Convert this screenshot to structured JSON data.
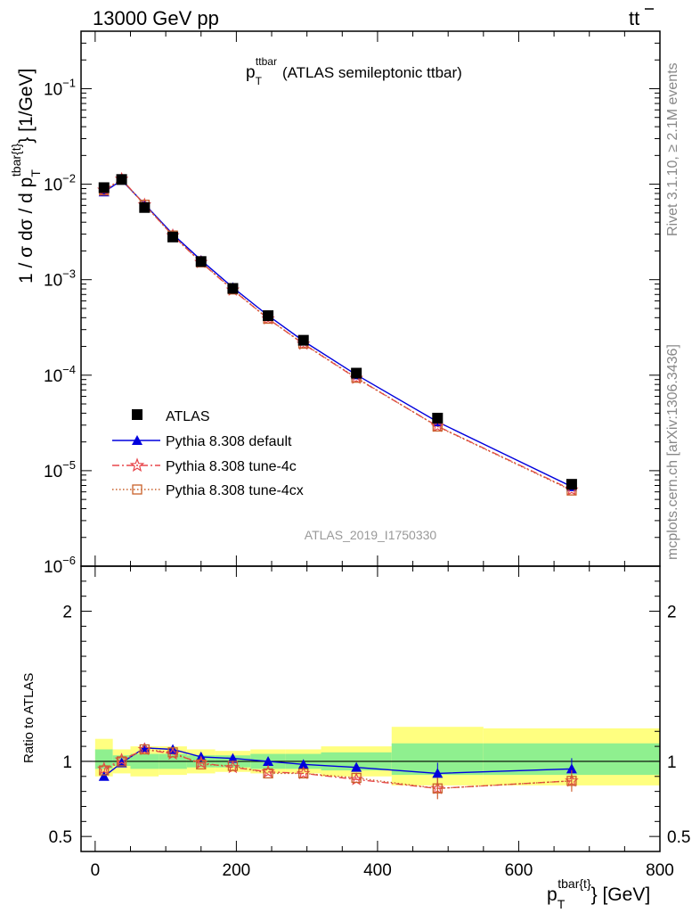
{
  "header": {
    "left": "13000 GeV pp",
    "right_base": "t",
    "right_bar": "t"
  },
  "side": {
    "rivet": "Rivet 3.1.10, ≥ 2.1M events",
    "mcplots": "mcplots.cern.ch [arXiv:1306.3436]"
  },
  "chart_data": [
    {
      "type": "line",
      "title_main": "p",
      "title_sub": "T",
      "title_sup": "ttbar",
      "title_rest": "(ATLAS semileptonic ttbar)",
      "ylabel_prefix": "1 / σ dσ / d p",
      "ylabel_sub": "T",
      "ylabel_sup": "tbar{t}",
      "ylabel_suffix": "} [1/GeV]",
      "watermark": "ATLAS_2019_I1750330",
      "yscale": "log",
      "xlim": [
        -20,
        800
      ],
      "ylim": [
        1e-06,
        0.4
      ],
      "ytick_labels": [
        {
          "base": "10",
          "exp": "−1",
          "value": 0.1
        },
        {
          "base": "10",
          "exp": "−2",
          "value": 0.01
        },
        {
          "base": "10",
          "exp": "−3",
          "value": 0.001
        },
        {
          "base": "10",
          "exp": "−4",
          "value": 0.0001
        },
        {
          "base": "10",
          "exp": "−5",
          "value": 1e-05
        },
        {
          "base": "10",
          "exp": "−6",
          "value": 1e-06
        }
      ],
      "legend_position": "lower-left",
      "x": [
        12.5,
        37.5,
        70,
        110,
        150,
        195,
        245,
        295,
        370,
        485,
        675
      ],
      "series": [
        {
          "name": "ATLAS",
          "color": "#000000",
          "marker": "square",
          "values": [
            0.0092,
            0.0112,
            0.0057,
            0.0028,
            0.00155,
            0.00081,
            0.00042,
            0.000232,
            0.000105,
            3.55e-05,
            7.2e-06
          ]
        },
        {
          "name": "Pythia 8.308 default",
          "color": "#0000dd",
          "marker": "triangle",
          "values": [
            0.0083,
            0.011,
            0.0062,
            0.003,
            0.0016,
            0.00083,
            0.00042,
            0.000228,
            0.000101,
            3.25e-05,
            6.8e-06
          ]
        },
        {
          "name": "Pythia 8.308 tune-4c",
          "color": "#e8474c",
          "marker": "star",
          "values": [
            0.0087,
            0.0113,
            0.0061,
            0.0029,
            0.00152,
            0.00078,
            0.00039,
            0.000212,
            9.3e-05,
            2.92e-05,
            6.3e-06
          ]
        },
        {
          "name": "Pythia 8.308 tune-4cx",
          "color": "#c8602a",
          "marker": "open-square",
          "values": [
            0.0086,
            0.0112,
            0.0061,
            0.0029,
            0.00152,
            0.00079,
            0.00039,
            0.000214,
            9.4e-05,
            2.9e-05,
            6.2e-06
          ]
        }
      ]
    },
    {
      "type": "line",
      "ylabel": "Ratio to ATLAS",
      "xlabel_main": "p",
      "xlabel_sub": "T",
      "xlabel_sup": "tbar{t}",
      "xlabel_suffix": "} [GeV]",
      "xlim": [
        -20,
        800
      ],
      "ylim": [
        0.4,
        2.3
      ],
      "xticks": [
        0,
        200,
        400,
        600,
        800
      ],
      "xtick_labels": [
        "0",
        "200",
        "400",
        "600",
        "800"
      ],
      "yticks": [
        0.5,
        1,
        2
      ],
      "ytick_labels": [
        "0.5",
        "1",
        "2"
      ],
      "bins": [
        [
          0,
          25
        ],
        [
          25,
          50
        ],
        [
          50,
          90
        ],
        [
          90,
          130
        ],
        [
          130,
          170
        ],
        [
          170,
          220
        ],
        [
          220,
          270
        ],
        [
          270,
          320
        ],
        [
          320,
          420
        ],
        [
          420,
          550
        ],
        [
          550,
          800
        ]
      ],
      "band_inner": [
        [
          0.95,
          1.08
        ],
        [
          0.97,
          1.04
        ],
        [
          0.95,
          1.05
        ],
        [
          0.95,
          1.05
        ],
        [
          0.96,
          1.04
        ],
        [
          0.96,
          1.04
        ],
        [
          0.95,
          1.05
        ],
        [
          0.95,
          1.05
        ],
        [
          0.94,
          1.06
        ],
        [
          0.91,
          1.12
        ],
        [
          0.91,
          1.12
        ]
      ],
      "band_outer": [
        [
          0.9,
          1.15
        ],
        [
          0.92,
          1.08
        ],
        [
          0.9,
          1.1
        ],
        [
          0.91,
          1.1
        ],
        [
          0.92,
          1.08
        ],
        [
          0.93,
          1.07
        ],
        [
          0.92,
          1.08
        ],
        [
          0.92,
          1.08
        ],
        [
          0.9,
          1.1
        ],
        [
          0.84,
          1.23
        ],
        [
          0.84,
          1.22
        ]
      ],
      "x": [
        12.5,
        37.5,
        70,
        110,
        150,
        195,
        245,
        295,
        370,
        485,
        675
      ],
      "series": [
        {
          "name": "Pythia 8.308 default",
          "color": "#0000dd",
          "marker": "triangle",
          "values": [
            0.9,
            0.99,
            1.09,
            1.08,
            1.03,
            1.02,
            1.0,
            0.98,
            0.96,
            0.92,
            0.95
          ]
        },
        {
          "name": "Pythia 8.308 tune-4c",
          "color": "#e8474c",
          "marker": "star",
          "values": [
            0.95,
            1.01,
            1.08,
            1.05,
            0.99,
            0.96,
            0.93,
            0.92,
            0.88,
            0.82,
            0.87
          ]
        },
        {
          "name": "Pythia 8.308 tune-4cx",
          "color": "#c8602a",
          "marker": "open-square",
          "values": [
            0.94,
            1.0,
            1.08,
            1.06,
            0.98,
            0.97,
            0.92,
            0.92,
            0.89,
            0.82,
            0.87
          ]
        }
      ]
    }
  ]
}
